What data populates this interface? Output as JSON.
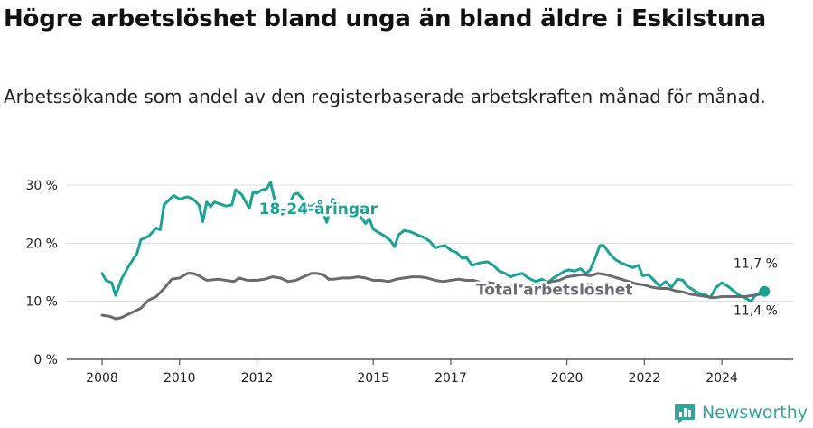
{
  "header": {
    "title": "Högre arbetslöshet bland unga än bland äldre i Eskilstuna",
    "subtitle": "Arbetssökande som andel av den registerbaserade arbetskraften månad för månad."
  },
  "brand": {
    "name": "Newsworthy",
    "icon": "bar-chart-logo-icon",
    "color": "#33a59a"
  },
  "chart_data": {
    "type": "line",
    "title": "Högre arbetslöshet bland unga än bland äldre i Eskilstuna",
    "subtitle": "Arbetssökande som andel av den registerbaserade arbetskraften månad för månad.",
    "xlabel": "",
    "ylabel": "",
    "xlim": [
      2008,
      2025
    ],
    "ylim": [
      0,
      30
    ],
    "x_ticks": [
      "2008",
      "2010",
      "2012",
      "2015",
      "2017",
      "2020",
      "2022",
      "2024"
    ],
    "y_ticks": [
      "0 %",
      "10 %",
      "20 %",
      "30 %"
    ],
    "grid": true,
    "series": [
      {
        "name": "18-24-åringar",
        "color": "#1aa394",
        "end_label": "11,7 %",
        "points": [
          [
            2008.0,
            14.8
          ],
          [
            2008.1,
            13.6
          ],
          [
            2008.25,
            13.2
          ],
          [
            2008.35,
            11.0
          ],
          [
            2008.5,
            13.8
          ],
          [
            2008.7,
            16.2
          ],
          [
            2008.9,
            18.2
          ],
          [
            2009.0,
            20.6
          ],
          [
            2009.2,
            21.2
          ],
          [
            2009.4,
            22.6
          ],
          [
            2009.5,
            22.3
          ],
          [
            2009.6,
            26.6
          ],
          [
            2009.75,
            27.6
          ],
          [
            2009.85,
            28.2
          ],
          [
            2010.0,
            27.6
          ],
          [
            2010.2,
            28.0
          ],
          [
            2010.35,
            27.6
          ],
          [
            2010.5,
            26.6
          ],
          [
            2010.6,
            23.7
          ],
          [
            2010.7,
            27.1
          ],
          [
            2010.8,
            26.3
          ],
          [
            2010.9,
            27.1
          ],
          [
            2011.2,
            26.4
          ],
          [
            2011.35,
            26.6
          ],
          [
            2011.45,
            29.2
          ],
          [
            2011.6,
            28.4
          ],
          [
            2011.7,
            27.2
          ],
          [
            2011.8,
            26.0
          ],
          [
            2011.9,
            28.8
          ],
          [
            2012.0,
            28.6
          ],
          [
            2012.1,
            29.1
          ],
          [
            2012.25,
            29.4
          ],
          [
            2012.35,
            30.5
          ],
          [
            2012.45,
            27.6
          ],
          [
            2012.55,
            26.8
          ],
          [
            2012.65,
            25.0
          ],
          [
            2012.8,
            26.2
          ],
          [
            2012.95,
            28.4
          ],
          [
            2013.05,
            28.6
          ],
          [
            2013.2,
            27.4
          ],
          [
            2013.35,
            26.2
          ],
          [
            2013.5,
            26.7
          ],
          [
            2013.65,
            26.2
          ],
          [
            2013.8,
            23.6
          ],
          [
            2013.95,
            27.6
          ],
          [
            2014.1,
            26.8
          ],
          [
            2014.35,
            24.8
          ],
          [
            2014.5,
            25.4
          ],
          [
            2014.65,
            24.8
          ],
          [
            2014.8,
            23.4
          ],
          [
            2014.9,
            24.2
          ],
          [
            2015.0,
            22.4
          ],
          [
            2015.15,
            21.8
          ],
          [
            2015.3,
            21.2
          ],
          [
            2015.45,
            20.4
          ],
          [
            2015.55,
            19.4
          ],
          [
            2015.65,
            21.4
          ],
          [
            2015.8,
            22.2
          ],
          [
            2015.95,
            22.0
          ],
          [
            2016.15,
            21.4
          ],
          [
            2016.3,
            21.0
          ],
          [
            2016.45,
            20.4
          ],
          [
            2016.6,
            19.2
          ],
          [
            2016.7,
            19.4
          ],
          [
            2016.85,
            19.6
          ],
          [
            2017.0,
            18.8
          ],
          [
            2017.15,
            18.4
          ],
          [
            2017.3,
            17.4
          ],
          [
            2017.4,
            17.6
          ],
          [
            2017.55,
            16.2
          ],
          [
            2017.75,
            16.6
          ],
          [
            2017.95,
            16.8
          ],
          [
            2018.1,
            16.2
          ],
          [
            2018.25,
            15.2
          ],
          [
            2018.4,
            14.8
          ],
          [
            2018.55,
            14.2
          ],
          [
            2018.7,
            14.6
          ],
          [
            2018.85,
            14.8
          ],
          [
            2019.0,
            14.0
          ],
          [
            2019.2,
            13.4
          ],
          [
            2019.35,
            13.8
          ],
          [
            2019.5,
            13.2
          ],
          [
            2019.65,
            14.0
          ],
          [
            2019.8,
            14.6
          ],
          [
            2019.95,
            15.2
          ],
          [
            2020.05,
            15.4
          ],
          [
            2020.2,
            15.2
          ],
          [
            2020.35,
            15.6
          ],
          [
            2020.5,
            14.8
          ],
          [
            2020.6,
            15.4
          ],
          [
            2020.75,
            17.8
          ],
          [
            2020.85,
            19.6
          ],
          [
            2020.95,
            19.6
          ],
          [
            2021.1,
            18.2
          ],
          [
            2021.25,
            17.2
          ],
          [
            2021.4,
            16.6
          ],
          [
            2021.55,
            16.2
          ],
          [
            2021.7,
            15.8
          ],
          [
            2021.85,
            16.2
          ],
          [
            2021.95,
            14.4
          ],
          [
            2022.1,
            14.6
          ],
          [
            2022.25,
            13.6
          ],
          [
            2022.4,
            12.6
          ],
          [
            2022.55,
            13.4
          ],
          [
            2022.7,
            12.4
          ],
          [
            2022.85,
            13.8
          ],
          [
            2023.0,
            13.6
          ],
          [
            2023.1,
            12.6
          ],
          [
            2023.25,
            12.0
          ],
          [
            2023.4,
            11.4
          ],
          [
            2023.55,
            11.2
          ],
          [
            2023.7,
            10.6
          ],
          [
            2023.85,
            12.4
          ],
          [
            2024.0,
            13.2
          ],
          [
            2024.15,
            12.6
          ],
          [
            2024.3,
            11.8
          ],
          [
            2024.45,
            11.0
          ],
          [
            2024.6,
            10.6
          ],
          [
            2024.75,
            10.0
          ],
          [
            2024.85,
            10.9
          ],
          [
            2024.95,
            11.4
          ],
          [
            2025.1,
            11.7
          ]
        ]
      },
      {
        "name": "Total arbetslöshet",
        "color": "#6b6a70",
        "end_label": "11,4 %",
        "points": [
          [
            2008.0,
            7.6
          ],
          [
            2008.2,
            7.4
          ],
          [
            2008.35,
            7.0
          ],
          [
            2008.5,
            7.2
          ],
          [
            2008.75,
            8.0
          ],
          [
            2009.0,
            8.8
          ],
          [
            2009.2,
            10.2
          ],
          [
            2009.4,
            10.8
          ],
          [
            2009.6,
            12.2
          ],
          [
            2009.8,
            13.8
          ],
          [
            2010.0,
            14.0
          ],
          [
            2010.2,
            14.8
          ],
          [
            2010.35,
            14.8
          ],
          [
            2010.5,
            14.4
          ],
          [
            2010.7,
            13.6
          ],
          [
            2011.0,
            13.8
          ],
          [
            2011.2,
            13.6
          ],
          [
            2011.4,
            13.4
          ],
          [
            2011.55,
            14.0
          ],
          [
            2011.75,
            13.6
          ],
          [
            2012.0,
            13.6
          ],
          [
            2012.2,
            13.8
          ],
          [
            2012.4,
            14.2
          ],
          [
            2012.6,
            14.0
          ],
          [
            2012.8,
            13.4
          ],
          [
            2013.0,
            13.6
          ],
          [
            2013.2,
            14.2
          ],
          [
            2013.4,
            14.8
          ],
          [
            2013.55,
            14.8
          ],
          [
            2013.7,
            14.6
          ],
          [
            2013.85,
            13.8
          ],
          [
            2014.0,
            13.8
          ],
          [
            2014.2,
            14.0
          ],
          [
            2014.4,
            14.0
          ],
          [
            2014.6,
            14.2
          ],
          [
            2014.8,
            14.0
          ],
          [
            2015.0,
            13.6
          ],
          [
            2015.2,
            13.6
          ],
          [
            2015.4,
            13.4
          ],
          [
            2015.6,
            13.8
          ],
          [
            2015.8,
            14.0
          ],
          [
            2016.0,
            14.2
          ],
          [
            2016.2,
            14.2
          ],
          [
            2016.4,
            14.0
          ],
          [
            2016.6,
            13.6
          ],
          [
            2016.8,
            13.4
          ],
          [
            2017.0,
            13.6
          ],
          [
            2017.2,
            13.8
          ],
          [
            2017.4,
            13.6
          ],
          [
            2017.6,
            13.6
          ],
          [
            2017.8,
            13.2
          ],
          [
            2018.0,
            13.2
          ],
          [
            2018.2,
            13.0
          ],
          [
            2018.4,
            12.8
          ],
          [
            2018.6,
            12.8
          ],
          [
            2018.8,
            12.6
          ],
          [
            2019.0,
            12.6
          ],
          [
            2019.2,
            12.8
          ],
          [
            2019.4,
            13.0
          ],
          [
            2019.6,
            13.4
          ],
          [
            2019.8,
            13.6
          ],
          [
            2020.0,
            14.2
          ],
          [
            2020.2,
            14.4
          ],
          [
            2020.4,
            14.6
          ],
          [
            2020.6,
            14.4
          ],
          [
            2020.8,
            14.8
          ],
          [
            2021.0,
            14.6
          ],
          [
            2021.2,
            14.2
          ],
          [
            2021.4,
            13.8
          ],
          [
            2021.6,
            13.4
          ],
          [
            2021.8,
            13.0
          ],
          [
            2022.0,
            12.8
          ],
          [
            2022.2,
            12.4
          ],
          [
            2022.4,
            12.2
          ],
          [
            2022.6,
            12.2
          ],
          [
            2022.8,
            11.8
          ],
          [
            2023.0,
            11.6
          ],
          [
            2023.2,
            11.2
          ],
          [
            2023.4,
            11.0
          ],
          [
            2023.6,
            10.8
          ],
          [
            2023.8,
            10.6
          ],
          [
            2024.0,
            10.8
          ],
          [
            2024.2,
            10.8
          ],
          [
            2024.4,
            10.8
          ],
          [
            2024.6,
            10.8
          ],
          [
            2024.8,
            11.0
          ],
          [
            2025.0,
            11.2
          ],
          [
            2025.1,
            11.4
          ]
        ]
      }
    ]
  }
}
